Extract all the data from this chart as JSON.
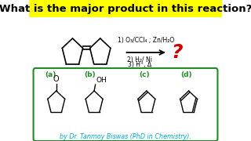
{
  "title": "What is the major product in this reaction?",
  "title_color": "#000000",
  "title_bg": "#FFFF00",
  "title_fontsize": 9.5,
  "reaction_steps": [
    "1) O₃/CCl₄ ; Zn/H₂O",
    "2) H₂/ Ni",
    "3) H⁺, Δ"
  ],
  "question_mark": "?",
  "question_mark_color": "#CC0000",
  "options": [
    "(a)",
    "(b)",
    "(c)",
    "(d)"
  ],
  "option_color": "#228B22",
  "box_color": "#228B22",
  "footer": "by Dr. Tanmoy Biswas (PhD in Chemistry).",
  "footer_color": "#00AACC",
  "bg_color": "#FFFFFF"
}
